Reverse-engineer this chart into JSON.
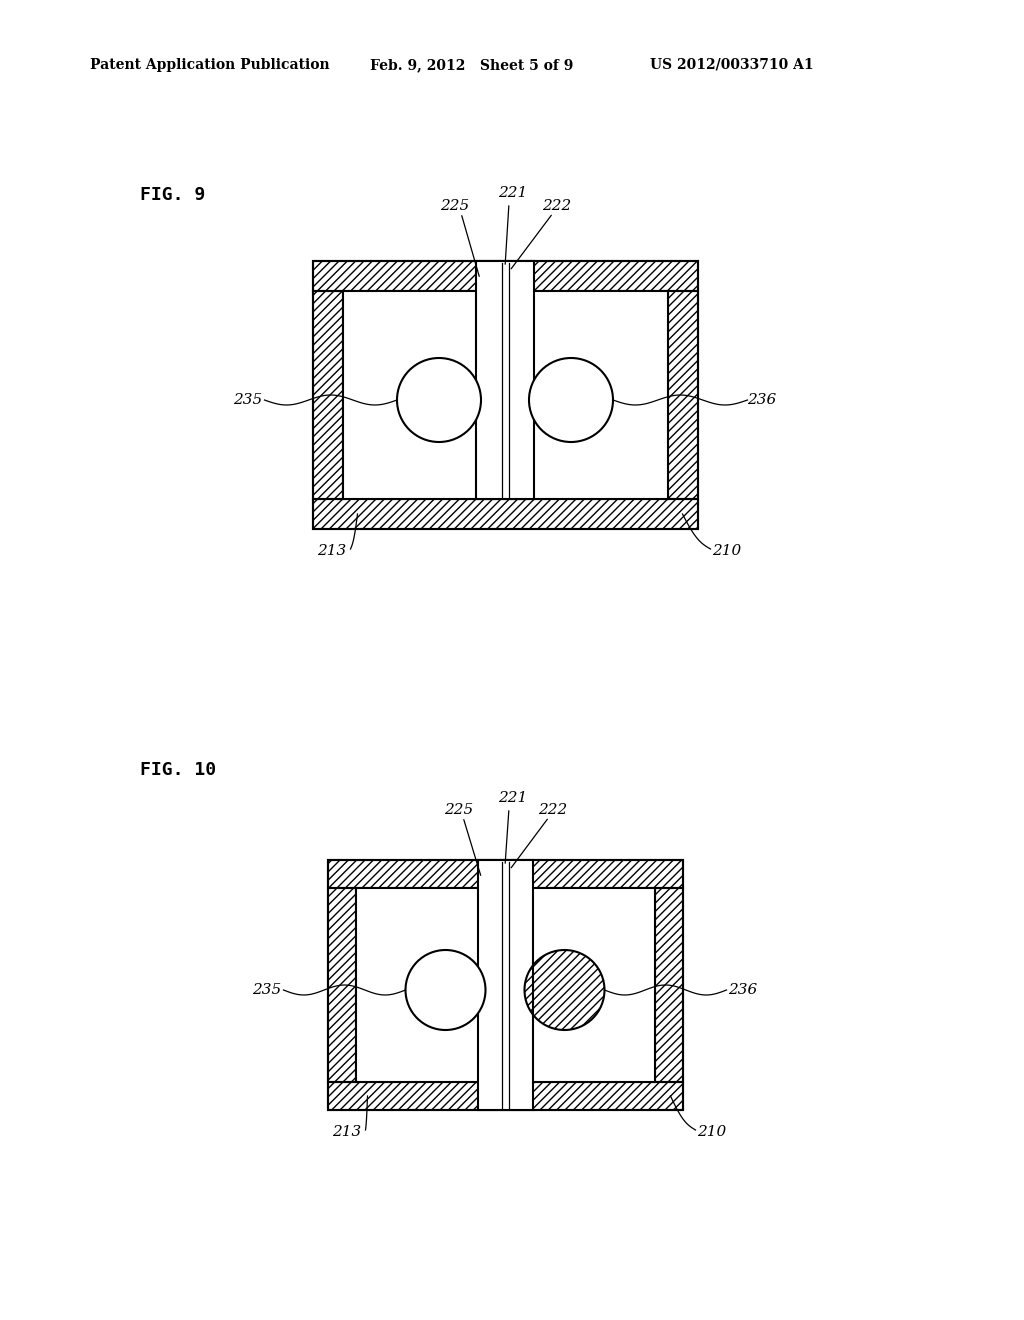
{
  "bg_color": "#ffffff",
  "header_left": "Patent Application Publication",
  "header_mid": "Feb. 9, 2012   Sheet 5 of 9",
  "header_right": "US 2012/0033710 A1",
  "fig9_label": "FIG. 9",
  "fig10_label": "FIG. 10",
  "label_221": "221",
  "label_222": "222",
  "label_225": "225",
  "label_235": "235",
  "label_236": "236",
  "label_213": "213",
  "label_210": "210",
  "hatch_pattern": "////",
  "line_color": "#000000"
}
